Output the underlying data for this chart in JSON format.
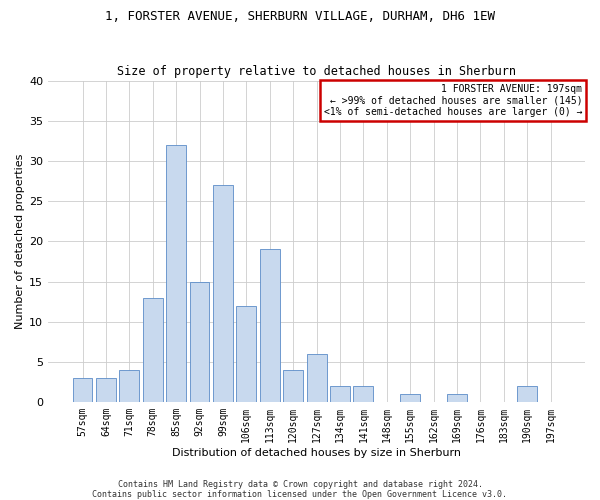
{
  "title1": "1, FORSTER AVENUE, SHERBURN VILLAGE, DURHAM, DH6 1EW",
  "title2": "Size of property relative to detached houses in Sherburn",
  "xlabel": "Distribution of detached houses by size in Sherburn",
  "ylabel": "Number of detached properties",
  "bar_labels": [
    "57sqm",
    "64sqm",
    "71sqm",
    "78sqm",
    "85sqm",
    "92sqm",
    "99sqm",
    "106sqm",
    "113sqm",
    "120sqm",
    "127sqm",
    "134sqm",
    "141sqm",
    "148sqm",
    "155sqm",
    "162sqm",
    "169sqm",
    "176sqm",
    "183sqm",
    "190sqm",
    "197sqm"
  ],
  "bar_values": [
    3,
    3,
    4,
    13,
    32,
    15,
    27,
    12,
    19,
    4,
    6,
    2,
    2,
    0,
    1,
    0,
    1,
    0,
    0,
    2,
    0
  ],
  "bar_color": "#c8d9ee",
  "bar_edge_color": "#5b8cc8",
  "annotation_text": "1 FORSTER AVENUE: 197sqm\n← >99% of detached houses are smaller (145)\n<1% of semi-detached houses are larger (0) →",
  "annotation_box_color": "#ffffff",
  "annotation_box_edge_color": "#cc0000",
  "footer1": "Contains HM Land Registry data © Crown copyright and database right 2024.",
  "footer2": "Contains public sector information licensed under the Open Government Licence v3.0.",
  "ylim": [
    0,
    40
  ],
  "yticks": [
    0,
    5,
    10,
    15,
    20,
    25,
    30,
    35,
    40
  ],
  "background_color": "#ffffff",
  "grid_color": "#cccccc",
  "title1_fontsize": 9,
  "title2_fontsize": 8.5,
  "xlabel_fontsize": 8,
  "ylabel_fontsize": 8,
  "xtick_fontsize": 7,
  "ytick_fontsize": 8,
  "annot_fontsize": 7,
  "footer_fontsize": 6
}
